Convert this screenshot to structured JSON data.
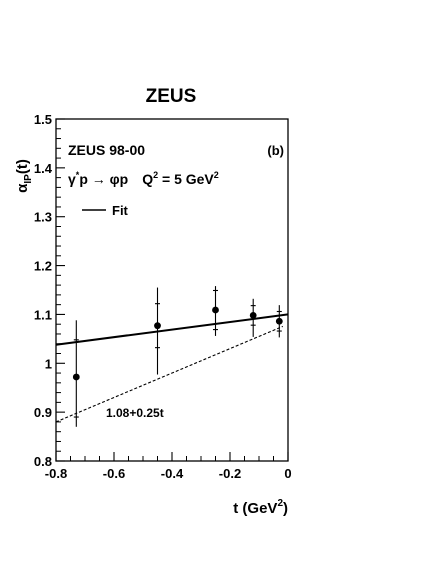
{
  "chart_data": {
    "type": "scatter",
    "title": "ZEUS",
    "panel_label": "(b)",
    "annotation_experiment": "ZEUS 98-00",
    "annotation_process": {
      "gamma": "γ",
      "star": "*",
      "rest": "p → φp",
      "q": "Q",
      "q_exp": "2",
      "q_rest": " = 5 GeV",
      "q_unit_exp": "2"
    },
    "legend": {
      "entries": [
        {
          "label": "Fit",
          "style": "solid"
        }
      ],
      "position": "top-left"
    },
    "xlabel": {
      "main": "t (GeV",
      "exp": "2",
      "close": ")"
    },
    "ylabel": {
      "main": "α",
      "sub": "IP",
      "tail": "(t)"
    },
    "xlim": [
      -0.8,
      0.0
    ],
    "ylim": [
      0.8,
      1.5
    ],
    "xticks": [
      -0.8,
      -0.6,
      -0.4,
      -0.2,
      0.0
    ],
    "xtick_labels": [
      "-0.8",
      "-0.6",
      "-0.4",
      "-0.2",
      "0"
    ],
    "yticks": [
      0.8,
      0.9,
      1.0,
      1.1,
      1.2,
      1.3,
      1.4,
      1.5
    ],
    "ytick_labels": [
      "0.8",
      "0.9",
      "1",
      "1.1",
      "1.2",
      "1.3",
      "1.4",
      "1.5"
    ],
    "grid": false,
    "points": [
      {
        "x": -0.73,
        "y": 0.972,
        "stat_lo": 0.082,
        "stat_hi": 0.076,
        "tot_lo": 0.102,
        "tot_hi": 0.116
      },
      {
        "x": -0.45,
        "y": 1.077,
        "stat_lo": 0.045,
        "stat_hi": 0.045,
        "tot_lo": 0.1,
        "tot_hi": 0.078
      },
      {
        "x": -0.25,
        "y": 1.109,
        "stat_lo": 0.04,
        "stat_hi": 0.04,
        "tot_lo": 0.053,
        "tot_hi": 0.049
      },
      {
        "x": -0.12,
        "y": 1.098,
        "stat_lo": 0.02,
        "stat_hi": 0.02,
        "tot_lo": 0.044,
        "tot_hi": 0.034
      },
      {
        "x": -0.03,
        "y": 1.086,
        "stat_lo": 0.02,
        "stat_hi": 0.02,
        "tot_lo": 0.033,
        "tot_hi": 0.033
      }
    ],
    "lines": [
      {
        "name": "Fit",
        "style": "solid",
        "x": [
          -0.8,
          0.0
        ],
        "y": [
          1.038,
          1.1
        ]
      },
      {
        "name": "1.08+0.25t",
        "style": "dashed",
        "intercept": 1.08,
        "slope": 0.25,
        "x": [
          -0.8,
          -0.018
        ],
        "y": [
          0.88,
          1.0755
        ]
      }
    ]
  }
}
